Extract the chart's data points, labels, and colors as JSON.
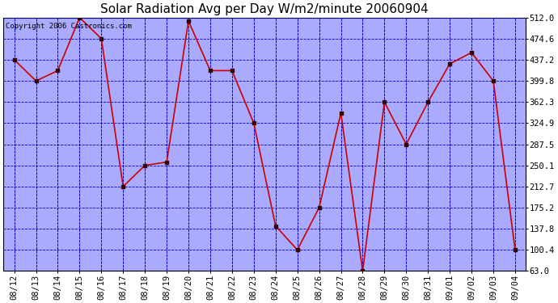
{
  "title": "Solar Radiation Avg per Day W/m2/minute 20060904",
  "copyright": "Copyright 2006 Castronics.com",
  "dates": [
    "08/12",
    "08/13",
    "08/14",
    "08/15",
    "08/16",
    "08/17",
    "08/18",
    "08/19",
    "08/20",
    "08/21",
    "08/22",
    "08/23",
    "08/24",
    "08/25",
    "08/26",
    "08/27",
    "08/28",
    "08/29",
    "08/30",
    "08/31",
    "09/01",
    "09/02",
    "09/03",
    "09/04"
  ],
  "values": [
    437.2,
    399.8,
    418.0,
    512.0,
    474.6,
    212.7,
    250.1,
    256.0,
    506.0,
    418.0,
    418.0,
    324.9,
    143.0,
    100.4,
    175.2,
    343.0,
    63.0,
    362.3,
    287.5,
    362.3,
    430.0,
    450.0,
    399.8,
    100.4
  ],
  "ylim": [
    63.0,
    512.0
  ],
  "yticks": [
    63.0,
    100.4,
    137.8,
    175.2,
    212.7,
    250.1,
    287.5,
    324.9,
    362.3,
    399.8,
    437.2,
    474.6,
    512.0
  ],
  "line_color": "#cc0000",
  "marker": "s",
  "marker_color": "#330000",
  "marker_size": 3,
  "bg_color": "#ffffff",
  "plot_bg_color": "#aaaaff",
  "grid_color": "#0000cc",
  "title_fontsize": 11,
  "tick_fontsize": 7.5,
  "copyright_fontsize": 6.5
}
